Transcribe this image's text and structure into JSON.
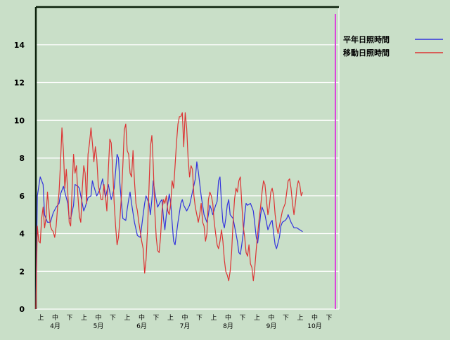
{
  "chart_data": {
    "type": "line",
    "ylim": [
      0,
      16
    ],
    "yticks": [
      0,
      2,
      4,
      6,
      8,
      10,
      12,
      14
    ],
    "grid": true,
    "legend_placement": "top-right",
    "xlim": [
      0,
      209
    ],
    "x_ticks_thirds": [
      "上",
      "中",
      "下",
      "上",
      "中",
      "下",
      "上",
      "中",
      "下",
      "上",
      "中",
      "下",
      "上",
      "中",
      "下",
      "上",
      "中",
      "下",
      "上",
      "中",
      "下"
    ],
    "months": [
      "4月",
      "5月",
      "6月",
      "7月",
      "8月",
      "9月",
      "10月"
    ],
    "series": [
      {
        "name": "平年日照時間",
        "color": "#3333dd",
        "points": [
          [
            0,
            0.0
          ],
          [
            1,
            6.0
          ],
          [
            3,
            7.0
          ],
          [
            5,
            6.6
          ],
          [
            6,
            5.0
          ],
          [
            8,
            4.6
          ],
          [
            10,
            4.6
          ],
          [
            12,
            5.1
          ],
          [
            14,
            5.4
          ],
          [
            16,
            5.6
          ],
          [
            17,
            6.1
          ],
          [
            19,
            6.5
          ],
          [
            20,
            6.2
          ],
          [
            22,
            5.6
          ],
          [
            23,
            4.8
          ],
          [
            24,
            4.8
          ],
          [
            26,
            5.5
          ],
          [
            27,
            6.6
          ],
          [
            29,
            6.5
          ],
          [
            30,
            6.4
          ],
          [
            31,
            6.0
          ],
          [
            33,
            5.2
          ],
          [
            34,
            5.4
          ],
          [
            36,
            5.9
          ],
          [
            38,
            6.0
          ],
          [
            39,
            6.8
          ],
          [
            40,
            6.5
          ],
          [
            42,
            6.0
          ],
          [
            44,
            6.3
          ],
          [
            46,
            6.9
          ],
          [
            47,
            6.4
          ],
          [
            48,
            5.9
          ],
          [
            50,
            6.6
          ],
          [
            52,
            5.8
          ],
          [
            54,
            6.4
          ],
          [
            56,
            8.2
          ],
          [
            57,
            8.0
          ],
          [
            58,
            6.6
          ],
          [
            60,
            4.8
          ],
          [
            62,
            4.7
          ],
          [
            63,
            5.3
          ],
          [
            64,
            5.8
          ],
          [
            65,
            6.2
          ],
          [
            66,
            5.6
          ],
          [
            68,
            4.6
          ],
          [
            70,
            3.9
          ],
          [
            72,
            3.8
          ],
          [
            74,
            5.0
          ],
          [
            75,
            5.6
          ],
          [
            76,
            6.0
          ],
          [
            78,
            5.6
          ],
          [
            79,
            5.0
          ],
          [
            80,
            5.8
          ],
          [
            81,
            6.8
          ],
          [
            82,
            6.2
          ],
          [
            84,
            5.4
          ],
          [
            86,
            5.7
          ],
          [
            87,
            5.8
          ],
          [
            88,
            4.8
          ],
          [
            89,
            4.2
          ],
          [
            90,
            5.0
          ],
          [
            91,
            5.6
          ],
          [
            92,
            6.1
          ],
          [
            93,
            5.6
          ],
          [
            94,
            4.6
          ],
          [
            95,
            3.6
          ],
          [
            96,
            3.4
          ],
          [
            97,
            4.0
          ],
          [
            98,
            4.6
          ],
          [
            100,
            5.6
          ],
          [
            101,
            5.8
          ],
          [
            102,
            5.5
          ],
          [
            104,
            5.2
          ],
          [
            106,
            5.5
          ],
          [
            108,
            6.2
          ],
          [
            110,
            6.9
          ],
          [
            111,
            7.8
          ],
          [
            112,
            7.3
          ],
          [
            114,
            6.0
          ],
          [
            116,
            5.0
          ],
          [
            118,
            4.6
          ],
          [
            119,
            5.0
          ],
          [
            120,
            5.5
          ],
          [
            121,
            5.3
          ],
          [
            122,
            5.0
          ],
          [
            124,
            5.5
          ],
          [
            125,
            5.7
          ],
          [
            126,
            6.8
          ],
          [
            127,
            7.0
          ],
          [
            128,
            5.6
          ],
          [
            129,
            4.6
          ],
          [
            130,
            4.3
          ],
          [
            131,
            4.8
          ],
          [
            132,
            5.5
          ],
          [
            133,
            5.8
          ],
          [
            134,
            5.0
          ],
          [
            136,
            4.8
          ],
          [
            138,
            4.0
          ],
          [
            139,
            3.6
          ],
          [
            140,
            3.0
          ],
          [
            141,
            2.9
          ],
          [
            142,
            3.4
          ],
          [
            143,
            4.0
          ],
          [
            144,
            5.0
          ],
          [
            145,
            5.6
          ],
          [
            146,
            5.5
          ],
          [
            148,
            5.6
          ],
          [
            150,
            5.2
          ],
          [
            151,
            4.5
          ],
          [
            152,
            3.8
          ],
          [
            153,
            3.5
          ],
          [
            154,
            4.2
          ],
          [
            155,
            5.0
          ],
          [
            156,
            5.4
          ],
          [
            158,
            5.0
          ],
          [
            159,
            4.6
          ],
          [
            160,
            4.2
          ],
          [
            162,
            4.6
          ],
          [
            163,
            4.7
          ],
          [
            164,
            4.0
          ],
          [
            165,
            3.4
          ],
          [
            166,
            3.2
          ],
          [
            168,
            3.8
          ],
          [
            169,
            4.4
          ],
          [
            170,
            4.6
          ],
          [
            172,
            4.7
          ],
          [
            173,
            4.8
          ],
          [
            174,
            5.0
          ],
          [
            176,
            4.6
          ],
          [
            178,
            4.3
          ],
          [
            180,
            4.3
          ],
          [
            182,
            4.2
          ],
          [
            184,
            4.1
          ]
        ]
      },
      {
        "name": "移動日照時間",
        "color": "#dd3333",
        "points": [
          [
            0,
            0.0
          ],
          [
            1,
            4.4
          ],
          [
            2,
            3.6
          ],
          [
            3,
            3.5
          ],
          [
            4,
            4.8
          ],
          [
            5,
            5.4
          ],
          [
            6,
            4.3
          ],
          [
            7,
            4.8
          ],
          [
            8,
            6.2
          ],
          [
            9,
            5.3
          ],
          [
            10,
            4.4
          ],
          [
            11,
            4.2
          ],
          [
            12,
            4.1
          ],
          [
            13,
            3.8
          ],
          [
            14,
            4.4
          ],
          [
            15,
            5.4
          ],
          [
            16,
            6.2
          ],
          [
            17,
            7.8
          ],
          [
            18,
            9.6
          ],
          [
            19,
            8.4
          ],
          [
            20,
            6.4
          ],
          [
            21,
            7.4
          ],
          [
            22,
            6.2
          ],
          [
            23,
            4.6
          ],
          [
            24,
            4.4
          ],
          [
            25,
            6.4
          ],
          [
            26,
            8.2
          ],
          [
            27,
            7.2
          ],
          [
            28,
            7.6
          ],
          [
            29,
            6.0
          ],
          [
            30,
            4.9
          ],
          [
            31,
            4.6
          ],
          [
            32,
            6.4
          ],
          [
            33,
            7.6
          ],
          [
            34,
            7.2
          ],
          [
            35,
            5.6
          ],
          [
            36,
            8.2
          ],
          [
            37,
            8.8
          ],
          [
            38,
            9.6
          ],
          [
            39,
            8.8
          ],
          [
            40,
            7.8
          ],
          [
            41,
            8.6
          ],
          [
            42,
            8.0
          ],
          [
            43,
            6.6
          ],
          [
            44,
            6.2
          ],
          [
            45,
            5.8
          ],
          [
            46,
            5.8
          ],
          [
            47,
            6.6
          ],
          [
            48,
            6.0
          ],
          [
            49,
            5.2
          ],
          [
            50,
            7.4
          ],
          [
            51,
            9.0
          ],
          [
            52,
            8.8
          ],
          [
            53,
            7.4
          ],
          [
            54,
            5.6
          ],
          [
            55,
            4.4
          ],
          [
            56,
            3.4
          ],
          [
            57,
            3.8
          ],
          [
            58,
            4.8
          ],
          [
            59,
            6.0
          ],
          [
            60,
            7.6
          ],
          [
            61,
            9.5
          ],
          [
            62,
            9.8
          ],
          [
            63,
            8.4
          ],
          [
            64,
            8.2
          ],
          [
            65,
            7.2
          ],
          [
            66,
            7.0
          ],
          [
            67,
            8.4
          ],
          [
            68,
            6.8
          ],
          [
            69,
            5.6
          ],
          [
            70,
            5.2
          ],
          [
            71,
            4.6
          ],
          [
            72,
            4.1
          ],
          [
            73,
            3.6
          ],
          [
            74,
            3.2
          ],
          [
            75,
            1.9
          ],
          [
            76,
            2.6
          ],
          [
            77,
            4.2
          ],
          [
            78,
            6.4
          ],
          [
            79,
            8.6
          ],
          [
            80,
            9.2
          ],
          [
            81,
            7.6
          ],
          [
            82,
            5.2
          ],
          [
            83,
            3.8
          ],
          [
            84,
            3.1
          ],
          [
            85,
            3.0
          ],
          [
            86,
            3.8
          ],
          [
            87,
            5.2
          ],
          [
            88,
            5.8
          ],
          [
            89,
            5.6
          ],
          [
            90,
            6.0
          ],
          [
            91,
            5.2
          ],
          [
            92,
            5.0
          ],
          [
            93,
            5.6
          ],
          [
            94,
            6.8
          ],
          [
            95,
            6.4
          ],
          [
            96,
            7.6
          ],
          [
            97,
            8.8
          ],
          [
            98,
            9.8
          ],
          [
            99,
            10.2
          ],
          [
            100,
            10.2
          ],
          [
            101,
            10.4
          ],
          [
            102,
            8.6
          ],
          [
            103,
            10.4
          ],
          [
            104,
            9.6
          ],
          [
            105,
            8.0
          ],
          [
            106,
            7.0
          ],
          [
            107,
            7.6
          ],
          [
            108,
            7.4
          ],
          [
            109,
            6.0
          ],
          [
            110,
            5.4
          ],
          [
            111,
            5.0
          ],
          [
            112,
            4.6
          ],
          [
            113,
            5.0
          ],
          [
            114,
            5.6
          ],
          [
            115,
            4.6
          ],
          [
            116,
            4.4
          ],
          [
            117,
            3.6
          ],
          [
            118,
            4.0
          ],
          [
            119,
            5.8
          ],
          [
            120,
            6.2
          ],
          [
            121,
            6.0
          ],
          [
            122,
            5.6
          ],
          [
            123,
            4.6
          ],
          [
            124,
            4.0
          ],
          [
            125,
            3.4
          ],
          [
            126,
            3.2
          ],
          [
            127,
            3.6
          ],
          [
            128,
            4.2
          ],
          [
            129,
            3.6
          ],
          [
            130,
            2.6
          ],
          [
            131,
            2.0
          ],
          [
            132,
            1.8
          ],
          [
            133,
            1.5
          ],
          [
            134,
            2.0
          ],
          [
            135,
            3.0
          ],
          [
            136,
            4.6
          ],
          [
            137,
            5.8
          ],
          [
            138,
            6.4
          ],
          [
            139,
            6.2
          ],
          [
            140,
            6.8
          ],
          [
            141,
            7.0
          ],
          [
            142,
            5.6
          ],
          [
            143,
            4.4
          ],
          [
            144,
            3.8
          ],
          [
            145,
            3.0
          ],
          [
            146,
            2.8
          ],
          [
            147,
            3.4
          ],
          [
            148,
            2.4
          ],
          [
            149,
            2.2
          ],
          [
            150,
            1.5
          ],
          [
            151,
            2.2
          ],
          [
            152,
            3.2
          ],
          [
            153,
            4.0
          ],
          [
            154,
            4.8
          ],
          [
            155,
            5.4
          ],
          [
            156,
            6.2
          ],
          [
            157,
            6.8
          ],
          [
            158,
            6.6
          ],
          [
            159,
            5.8
          ],
          [
            160,
            5.0
          ],
          [
            161,
            5.4
          ],
          [
            162,
            6.2
          ],
          [
            163,
            6.4
          ],
          [
            164,
            6.0
          ],
          [
            165,
            5.0
          ],
          [
            166,
            4.4
          ],
          [
            167,
            4.0
          ],
          [
            168,
            4.4
          ],
          [
            169,
            4.8
          ],
          [
            170,
            5.2
          ],
          [
            171,
            5.4
          ],
          [
            172,
            5.6
          ],
          [
            173,
            6.2
          ],
          [
            174,
            6.8
          ],
          [
            175,
            6.9
          ],
          [
            176,
            6.4
          ],
          [
            177,
            5.6
          ],
          [
            178,
            5.0
          ],
          [
            179,
            5.6
          ],
          [
            180,
            6.4
          ],
          [
            181,
            6.8
          ],
          [
            182,
            6.6
          ],
          [
            183,
            6.0
          ],
          [
            184,
            6.2
          ]
        ]
      }
    ]
  }
}
